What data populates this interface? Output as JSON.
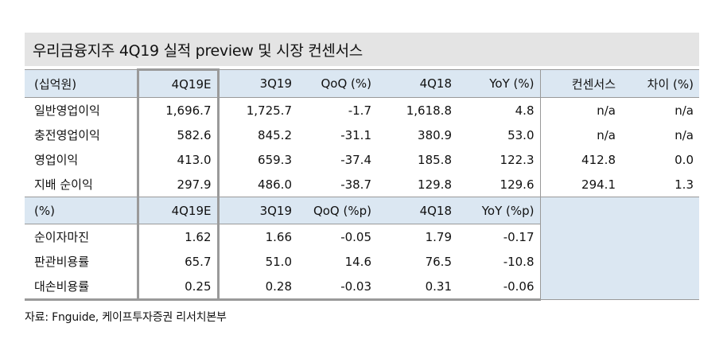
{
  "title": "우리금융지주 4Q19 실적 preview 및 시장 컨센서스",
  "section1": {
    "header": [
      "(십억원)",
      "4Q19E",
      "3Q19",
      "QoQ (%)",
      "4Q18",
      "YoY (%)",
      "컨센서스",
      "차이 (%)"
    ],
    "rows": [
      [
        "일반영업이익",
        "1,696.7",
        "1,725.7",
        "-1.7",
        "1,618.8",
        "4.8",
        "n/a",
        "n/a"
      ],
      [
        "충전영업이익",
        "582.6",
        "845.2",
        "-31.1",
        "380.9",
        "53.0",
        "n/a",
        "n/a"
      ],
      [
        "영업이익",
        "413.0",
        "659.3",
        "-37.4",
        "185.8",
        "122.3",
        "412.8",
        "0.0"
      ],
      [
        "지배 순이익",
        "297.9",
        "486.0",
        "-38.7",
        "129.8",
        "129.6",
        "294.1",
        "1.3"
      ]
    ]
  },
  "section2": {
    "header": [
      "(%)",
      "4Q19E",
      "3Q19",
      "QoQ (%p)",
      "4Q18",
      "YoY (%p)"
    ],
    "rows": [
      [
        "순이자마진",
        "1.62",
        "1.66",
        "-0.05",
        "1.79",
        "-0.17"
      ],
      [
        "판관비용률",
        "65.7",
        "51.0",
        "14.6",
        "76.5",
        "-10.8"
      ],
      [
        "대손비용률",
        "0.25",
        "0.28",
        "-0.03",
        "0.31",
        "-0.06"
      ]
    ]
  },
  "source": "자료: Fnguide, 케이프투자증권 리서치본부"
}
